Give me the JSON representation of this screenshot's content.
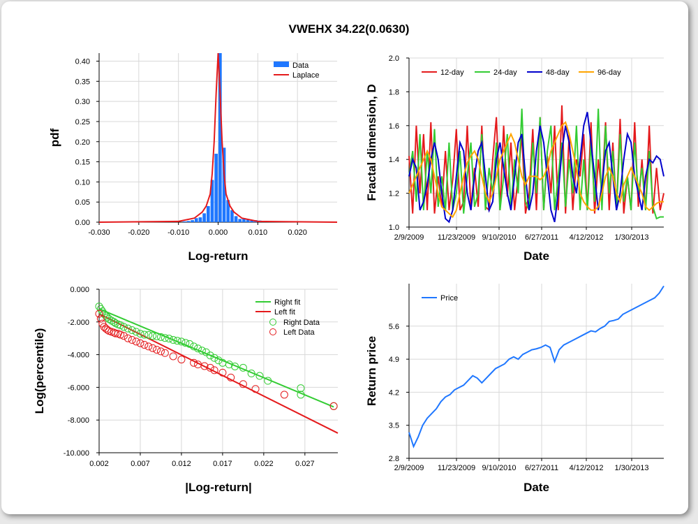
{
  "title": "VWEHX 34.22(0.0630)",
  "colors": {
    "blue": "#1f77ff",
    "red": "#e41a1c",
    "green": "#33cc33",
    "darkblue": "#0000cc",
    "orange": "#ffa500",
    "grid": "#d8d8d8"
  },
  "chart_data": [
    {
      "type": "bar",
      "title": "",
      "xlabel": "Log-return",
      "ylabel": "pdf",
      "xlim": [
        -0.03,
        0.03
      ],
      "ylim": [
        0,
        0.42
      ],
      "x_ticks": [
        "-0.030",
        "-0.020",
        "-0.010",
        "0.000",
        "0.010",
        "0.020"
      ],
      "y_ticks": [
        "0.00",
        "0.05",
        "0.10",
        "0.15",
        "0.20",
        "0.25",
        "0.30",
        "0.35",
        "0.40"
      ],
      "legend": [
        "Data",
        "Laplace"
      ],
      "legend_position": "top-right",
      "grid": true,
      "bins": {
        "centers": [
          -0.0085,
          -0.0075,
          -0.0065,
          -0.0055,
          -0.0045,
          -0.0035,
          -0.0025,
          -0.0015,
          -0.0005,
          0.0005,
          0.0015,
          0.0025,
          0.0035,
          0.0045,
          0.0055,
          0.0065,
          0.0075,
          0.0085,
          0.0095,
          0.0105,
          0.0115
        ],
        "values": [
          0.002,
          0.003,
          0.005,
          0.01,
          0.012,
          0.022,
          0.04,
          0.105,
          0.17,
          0.42,
          0.185,
          0.055,
          0.03,
          0.015,
          0.008,
          0.01,
          0.008,
          0.006,
          0.005,
          0.004,
          0.003
        ]
      },
      "laplace": {
        "x": [
          -0.03,
          -0.01,
          -0.006,
          -0.004,
          -0.003,
          -0.002,
          -0.0015,
          -0.001,
          -0.0005,
          0.0,
          0.0005,
          0.001,
          0.0015,
          0.002,
          0.003,
          0.004,
          0.006,
          0.01,
          0.03
        ],
        "y": [
          0.0,
          0.002,
          0.01,
          0.025,
          0.04,
          0.07,
          0.12,
          0.2,
          0.32,
          0.42,
          0.32,
          0.2,
          0.12,
          0.07,
          0.04,
          0.025,
          0.01,
          0.002,
          0.0
        ]
      }
    },
    {
      "type": "line",
      "title": "",
      "xlabel": "Date",
      "ylabel": "Fractal dimension, D",
      "xlim": [
        0,
        100
      ],
      "ylim": [
        1.0,
        2.0
      ],
      "x_ticks": [
        "2/9/2009",
        "11/23/2009",
        "9/10/2010",
        "6/27/2011",
        "4/12/2012",
        "1/30/2013"
      ],
      "y_ticks": [
        "1.0",
        "1.2",
        "1.4",
        "1.6",
        "1.8",
        "2.0"
      ],
      "legend_position": "top-left",
      "grid": true,
      "series": [
        {
          "name": "12-day",
          "color": "#e41a1c",
          "values": [
            1.42,
            1.08,
            1.6,
            1.2,
            1.55,
            1.1,
            1.62,
            1.08,
            1.3,
            1.12,
            1.45,
            1.1,
            1.28,
            1.58,
            1.1,
            1.15,
            1.6,
            1.1,
            1.35,
            1.12,
            1.6,
            1.12,
            1.1,
            1.4,
            1.65,
            1.1,
            1.6,
            1.18,
            1.5,
            1.1,
            1.3,
            1.55,
            1.08,
            1.2,
            1.58,
            1.1,
            1.65,
            1.1,
            1.42,
            1.2,
            1.6,
            1.1,
            1.72,
            1.08,
            1.55,
            1.1,
            1.4,
            1.3,
            1.55,
            1.1,
            1.62,
            1.08,
            1.4,
            1.2,
            1.62,
            1.1,
            1.5,
            1.1,
            1.64,
            1.08,
            1.3,
            1.1,
            1.62,
            1.12,
            1.4,
            1.1,
            1.6,
            1.08,
            1.35,
            1.1,
            1.2
          ]
        },
        {
          "name": "24-day",
          "color": "#33cc33",
          "values": [
            1.3,
            1.45,
            1.15,
            1.55,
            1.1,
            1.45,
            1.2,
            1.58,
            1.12,
            1.3,
            1.1,
            1.5,
            1.1,
            1.2,
            1.45,
            1.08,
            1.3,
            1.5,
            1.12,
            1.2,
            1.55,
            1.1,
            1.35,
            1.2,
            1.5,
            1.1,
            1.3,
            1.55,
            1.1,
            1.4,
            1.2,
            1.7,
            1.15,
            1.1,
            1.5,
            1.2,
            1.65,
            1.1,
            1.45,
            1.6,
            1.1,
            1.3,
            1.5,
            1.12,
            1.4,
            1.2,
            1.6,
            1.1,
            1.4,
            1.1,
            1.5,
            1.15,
            1.7,
            1.1,
            1.6,
            1.2,
            1.45,
            1.1,
            1.55,
            1.15,
            1.3,
            1.1,
            1.5,
            1.2,
            1.35,
            1.1,
            1.45,
            1.12,
            1.05,
            1.06,
            1.06
          ]
        },
        {
          "name": "48-day",
          "color": "#0000cc",
          "values": [
            1.3,
            1.4,
            1.35,
            1.1,
            1.15,
            1.25,
            1.4,
            1.5,
            1.4,
            1.2,
            1.05,
            1.03,
            1.1,
            1.3,
            1.5,
            1.45,
            1.2,
            1.1,
            1.3,
            1.45,
            1.5,
            1.3,
            1.1,
            1.15,
            1.4,
            1.5,
            1.35,
            1.2,
            1.1,
            1.3,
            1.5,
            1.55,
            1.3,
            1.1,
            1.2,
            1.45,
            1.6,
            1.5,
            1.3,
            1.1,
            1.03,
            1.2,
            1.45,
            1.6,
            1.5,
            1.3,
            1.2,
            1.4,
            1.6,
            1.68,
            1.5,
            1.3,
            1.1,
            1.25,
            1.45,
            1.5,
            1.3,
            1.1,
            1.2,
            1.4,
            1.55,
            1.5,
            1.3,
            1.2,
            1.1,
            1.3,
            1.4,
            1.38,
            1.42,
            1.4,
            1.3
          ]
        },
        {
          "name": "96-day",
          "color": "#ffa500",
          "values": [
            1.2,
            1.25,
            1.3,
            1.35,
            1.4,
            1.45,
            1.4,
            1.3,
            1.2,
            1.12,
            1.1,
            1.08,
            1.06,
            1.1,
            1.2,
            1.3,
            1.38,
            1.42,
            1.45,
            1.4,
            1.3,
            1.2,
            1.15,
            1.2,
            1.3,
            1.4,
            1.45,
            1.5,
            1.55,
            1.5,
            1.4,
            1.3,
            1.25,
            1.3,
            1.3,
            1.3,
            1.28,
            1.3,
            1.35,
            1.45,
            1.5,
            1.55,
            1.6,
            1.62,
            1.55,
            1.45,
            1.35,
            1.2,
            1.15,
            1.12,
            1.1,
            1.1,
            1.12,
            1.2,
            1.3,
            1.35,
            1.3,
            1.2,
            1.15,
            1.25,
            1.3,
            1.35,
            1.3,
            1.25,
            1.2,
            1.12,
            1.1,
            1.12,
            1.14,
            1.15,
            1.15
          ]
        }
      ]
    },
    {
      "type": "scatter",
      "title": "",
      "xlabel": "|Log-return|",
      "ylabel": "Log(percentile)",
      "xlim": [
        0.002,
        0.031
      ],
      "ylim": [
        -10.0,
        0.0
      ],
      "x_ticks": [
        "0.002",
        "0.007",
        "0.012",
        "0.017",
        "0.022",
        "0.027"
      ],
      "y_ticks": [
        "0.000",
        "-2.000",
        "-4.000",
        "-6.000",
        "-8.000",
        "-10.000"
      ],
      "legend": [
        "Right fit",
        "Left fit",
        "Right Data",
        "Left Data"
      ],
      "legend_position": "top-right",
      "grid": true,
      "right_fit": {
        "x": [
          0.002,
          0.0305
        ],
        "y": [
          -1.2,
          -7.2
        ]
      },
      "left_fit": {
        "x": [
          0.002,
          0.031
        ],
        "y": [
          -1.5,
          -8.8
        ]
      },
      "right_data": {
        "x": [
          0.002,
          0.0022,
          0.0024,
          0.0026,
          0.0028,
          0.003,
          0.0032,
          0.0035,
          0.0038,
          0.004,
          0.0043,
          0.0046,
          0.005,
          0.0055,
          0.006,
          0.0065,
          0.007,
          0.0075,
          0.008,
          0.0085,
          0.009,
          0.0095,
          0.01,
          0.0105,
          0.011,
          0.0115,
          0.012,
          0.0125,
          0.013,
          0.0135,
          0.014,
          0.0145,
          0.015,
          0.0155,
          0.016,
          0.0165,
          0.017,
          0.0178,
          0.0185,
          0.0195,
          0.0205,
          0.0215,
          0.0225,
          0.0265,
          0.0265,
          0.0305
        ],
        "y": [
          -1.05,
          -1.2,
          -1.35,
          -1.5,
          -1.62,
          -1.72,
          -1.82,
          -1.92,
          -2.0,
          -2.08,
          -2.15,
          -2.2,
          -2.3,
          -2.4,
          -2.5,
          -2.6,
          -2.72,
          -2.78,
          -2.8,
          -2.85,
          -2.88,
          -2.92,
          -2.98,
          -3.02,
          -3.1,
          -3.15,
          -3.2,
          -3.28,
          -3.35,
          -3.5,
          -3.62,
          -3.75,
          -3.85,
          -4.05,
          -4.2,
          -4.35,
          -4.5,
          -4.6,
          -4.72,
          -4.8,
          -5.15,
          -5.3,
          -5.6,
          -6.05,
          -6.45,
          -7.15
        ]
      },
      "left_data": {
        "x": [
          0.002,
          0.0022,
          0.0024,
          0.0026,
          0.0028,
          0.003,
          0.0032,
          0.0035,
          0.0038,
          0.004,
          0.0043,
          0.0046,
          0.005,
          0.0055,
          0.006,
          0.0065,
          0.007,
          0.0075,
          0.008,
          0.0085,
          0.009,
          0.0095,
          0.01,
          0.011,
          0.012,
          0.0135,
          0.014,
          0.0148,
          0.0155,
          0.016,
          0.017,
          0.018,
          0.0195,
          0.021,
          0.0245,
          0.0305
        ],
        "y": [
          -1.5,
          -1.8,
          -2.1,
          -2.3,
          -2.4,
          -2.48,
          -2.55,
          -2.6,
          -2.65,
          -2.7,
          -2.72,
          -2.78,
          -2.85,
          -3.0,
          -3.1,
          -3.2,
          -3.3,
          -3.4,
          -3.5,
          -3.6,
          -3.7,
          -3.8,
          -3.9,
          -4.1,
          -4.3,
          -4.5,
          -4.6,
          -4.7,
          -4.8,
          -4.95,
          -5.1,
          -5.4,
          -5.8,
          -6.1,
          -6.45,
          -7.15
        ]
      }
    },
    {
      "type": "line",
      "title": "",
      "xlabel": "Date",
      "ylabel": "Return price",
      "xlim": [
        0,
        100
      ],
      "ylim": [
        2.8,
        6.5
      ],
      "x_ticks": [
        "2/9/2009",
        "11/23/2009",
        "9/10/2010",
        "6/27/2011",
        "4/12/2012",
        "1/30/2013"
      ],
      "y_ticks": [
        "2.8",
        "3.5",
        "4.2",
        "4.9",
        "5.6"
      ],
      "legend_position": "top-left",
      "grid": true,
      "series": [
        {
          "name": "Price",
          "color": "#1f77ff",
          "values": [
            3.35,
            3.05,
            3.25,
            3.5,
            3.65,
            3.75,
            3.85,
            4.0,
            4.1,
            4.15,
            4.25,
            4.3,
            4.35,
            4.45,
            4.55,
            4.5,
            4.4,
            4.5,
            4.6,
            4.7,
            4.75,
            4.8,
            4.9,
            4.95,
            4.9,
            5.0,
            5.05,
            5.1,
            5.12,
            5.15,
            5.2,
            5.15,
            4.85,
            5.1,
            5.2,
            5.25,
            5.3,
            5.35,
            5.4,
            5.45,
            5.5,
            5.48,
            5.55,
            5.6,
            5.7,
            5.72,
            5.75,
            5.85,
            5.9,
            5.95,
            6.0,
            6.05,
            6.1,
            6.15,
            6.2,
            6.3,
            6.45
          ]
        }
      ]
    }
  ]
}
